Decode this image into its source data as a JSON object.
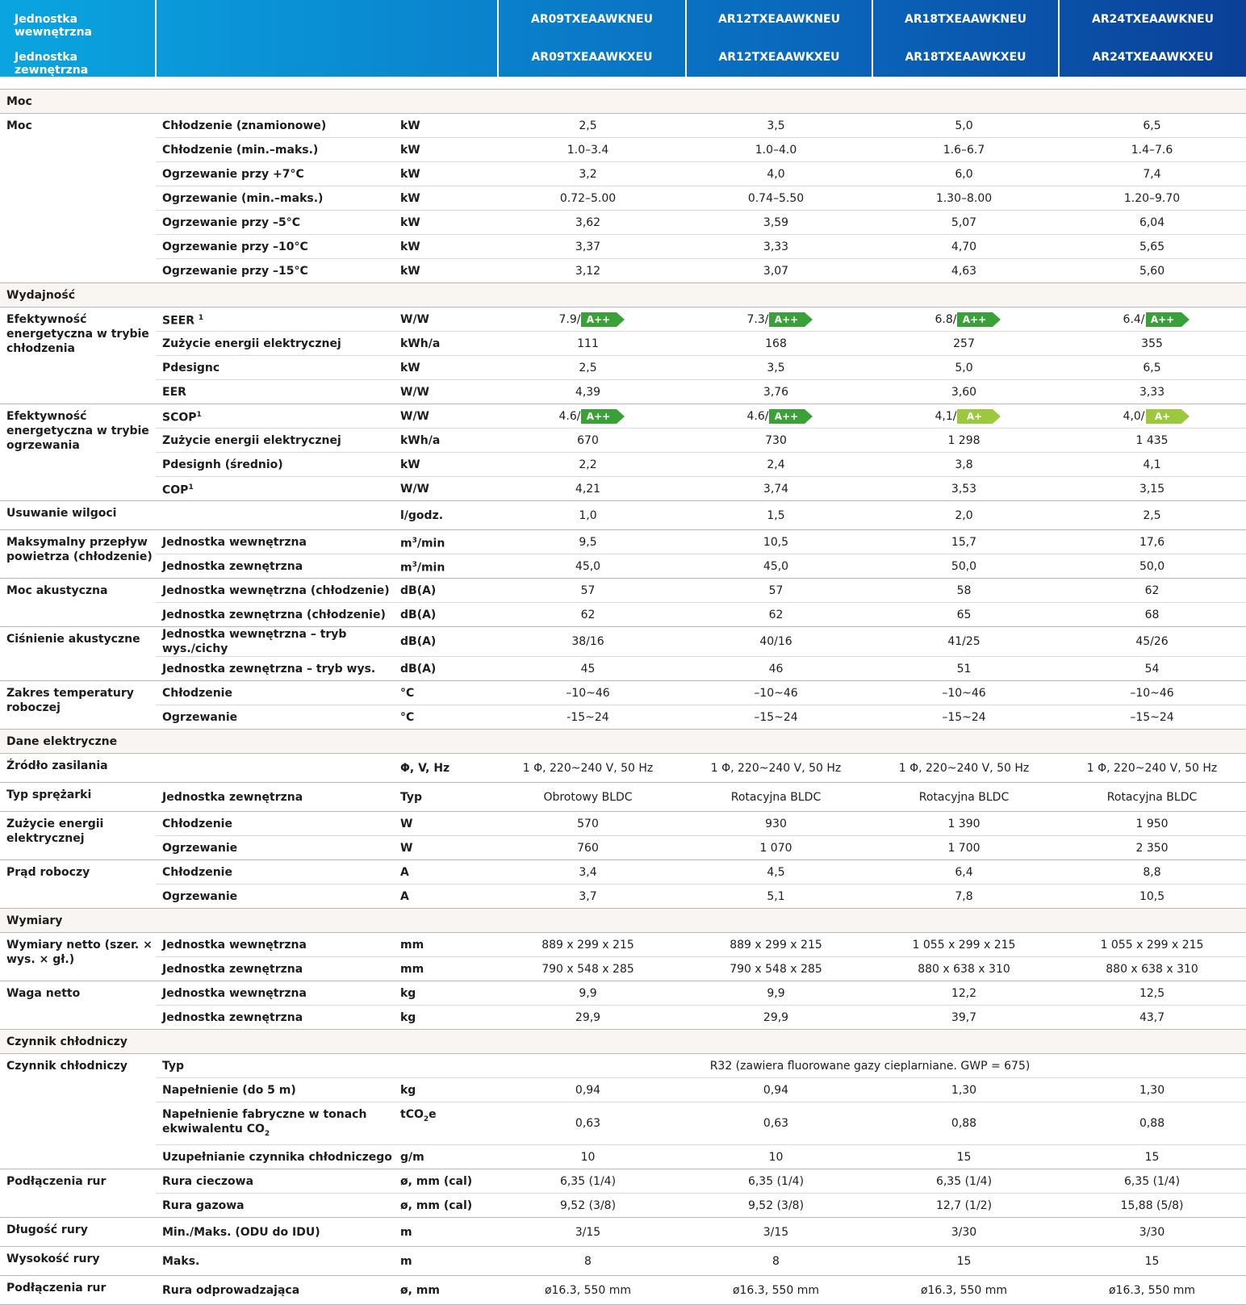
{
  "header": {
    "indoor_label": "Jednostka wewnętrzna",
    "outdoor_label": "Jednostka zewnętrzna",
    "models": [
      {
        "indoor": "AR09TXEAAWKNEU",
        "outdoor": "AR09TXEAAWKXEU"
      },
      {
        "indoor": "AR12TXEAAWKNEU",
        "outdoor": "AR12TXEAAWKXEU"
      },
      {
        "indoor": "AR18TXEAAWKNEU",
        "outdoor": "AR18TXEAAWKXEU"
      },
      {
        "indoor": "AR24TXEAAWKNEU",
        "outdoor": "AR24TXEAAWKXEU"
      }
    ]
  },
  "sections": {
    "moc": "Moc",
    "wydajnosc": "Wydajność",
    "elektryczne": "Dane elektryczne",
    "wymiary": "Wymiary",
    "czynnik": "Czynnik chłodniczy"
  },
  "rows": {
    "moc": {
      "name": "Moc",
      "r0": {
        "sub": "Chłodzenie (znamionowe)",
        "unit": "kW",
        "v": [
          "2,5",
          "3,5",
          "5,0",
          "6,5"
        ]
      },
      "r1": {
        "sub": "Chłodzenie (min.–maks.)",
        "unit": "kW",
        "v": [
          "1.0–3.4",
          "1.0–4.0",
          "1.6–6.7",
          "1.4–7.6"
        ]
      },
      "r2": {
        "sub": "Ogrzewanie przy +7°C",
        "unit": "kW",
        "v": [
          "3,2",
          "4,0",
          "6,0",
          "7,4"
        ]
      },
      "r3": {
        "sub": "Ogrzewanie (min.–maks.)",
        "unit": "kW",
        "v": [
          "0.72–5.00",
          "0.74–5.50",
          "1.30–8.00",
          "1.20–9.70"
        ]
      },
      "r4": {
        "sub": "Ogrzewanie przy –5°C",
        "unit": "kW",
        "v": [
          "3,62",
          "3,59",
          "5,07",
          "6,04"
        ]
      },
      "r5": {
        "sub": "Ogrzewanie przy –10°C",
        "unit": "kW",
        "v": [
          "3,37",
          "3,33",
          "4,70",
          "5,65"
        ]
      },
      "r6": {
        "sub": "Ogrzewanie przy –15°C",
        "unit": "kW",
        "v": [
          "3,12",
          "3,07",
          "4,63",
          "5,60"
        ]
      }
    },
    "eff_cool": {
      "name": "Efektywność energetyczna w trybie chłodzenia",
      "seer": {
        "sub": "SEER",
        "sup": "1",
        "unit": "W/W",
        "v": [
          "7.9/",
          "7.3/",
          "6.8/",
          "6.4/"
        ],
        "class": [
          "A++",
          "A++",
          "A++",
          "A++"
        ]
      },
      "r1": {
        "sub": "Zużycie energii elektrycznej",
        "unit": "kWh/a",
        "v": [
          "111",
          "168",
          "257",
          "355"
        ]
      },
      "r2": {
        "sub": "Pdesignc",
        "unit": "kW",
        "v": [
          "2,5",
          "3,5",
          "5,0",
          "6,5"
        ]
      },
      "r3": {
        "sub": "EER",
        "unit": "W/W",
        "v": [
          "4,39",
          "3,76",
          "3,60",
          "3,33"
        ]
      }
    },
    "eff_heat": {
      "name": "Efektywność energetyczna w trybie ogrzewania",
      "scop": {
        "sub": "SCOP",
        "sup": "1",
        "unit": "W/W",
        "v": [
          "4.6/",
          "4.6/",
          "4,1/",
          "4,0/"
        ],
        "class": [
          "A++",
          "A++",
          "A+",
          "A+"
        ]
      },
      "r1": {
        "sub": "Zużycie energii elektrycznej",
        "unit": "kWh/a",
        "v": [
          "670",
          "730",
          "1 298",
          "1 435"
        ]
      },
      "r2": {
        "sub": "Pdesignh (średnio)",
        "unit": "kW",
        "v": [
          "2,2",
          "2,4",
          "3,8",
          "4,1"
        ]
      },
      "cop": {
        "sub": "COP",
        "sup": "1",
        "unit": "W/W",
        "v": [
          "4,21",
          "3,74",
          "3,53",
          "3,15"
        ]
      }
    },
    "wilgoc": {
      "name": "Usuwanie wilgoci",
      "unit": "l/godz.",
      "v": [
        "1,0",
        "1,5",
        "2,0",
        "2,5"
      ]
    },
    "przeplyw": {
      "name": "Maksymalny przepływ powietrza (chłodzenie)",
      "r0": {
        "sub": "Jednostka wewnętrzna",
        "unit": "m",
        "unit_sup": "3",
        "unit_tail": "/min",
        "v": [
          "9,5",
          "10,5",
          "15,7",
          "17,6"
        ]
      },
      "r1": {
        "sub": "Jednostka zewnętrzna",
        "unit": "m",
        "unit_sup": "3",
        "unit_tail": "/min",
        "v": [
          "45,0",
          "45,0",
          "50,0",
          "50,0"
        ]
      }
    },
    "moc_ak": {
      "name": "Moc akustyczna",
      "r0": {
        "sub": "Jednostka wewnętrzna (chłodzenie)",
        "unit": "dB(A)",
        "v": [
          "57",
          "57",
          "58",
          "62"
        ]
      },
      "r1": {
        "sub": "Jednostka zewnętrzna (chłodzenie)",
        "unit": "dB(A)",
        "v": [
          "62",
          "62",
          "65",
          "68"
        ]
      }
    },
    "cisn_ak": {
      "name": "Ciśnienie akustyczne",
      "r0": {
        "sub": "Jednostka wewnętrzna – tryb wys./cichy",
        "unit": "dB(A)",
        "v": [
          "38/16",
          "40/16",
          "41/25",
          "45/26"
        ]
      },
      "r1": {
        "sub": "Jednostka zewnętrzna – tryb wys.",
        "unit": "dB(A)",
        "v": [
          "45",
          "46",
          "51",
          "54"
        ]
      }
    },
    "zakres": {
      "name": "Zakres temperatury roboczej",
      "r0": {
        "sub": "Chłodzenie",
        "unit": "°C",
        "v": [
          "–10~46",
          "–10~46",
          "–10~46",
          "–10~46"
        ]
      },
      "r1": {
        "sub": "Ogrzewanie",
        "unit": "°C",
        "v": [
          "-15~24",
          "–15~24",
          "–15~24",
          "–15~24"
        ]
      }
    },
    "zrodlo": {
      "name": "Źródło zasilania",
      "unit": "Φ, V, Hz",
      "v": [
        "1 Φ, 220~240 V, 50 Hz",
        "1 Φ, 220~240 V, 50 Hz",
        "1 Φ, 220~240 V, 50 Hz",
        "1 Φ, 220~240 V, 50 Hz"
      ]
    },
    "sprezarka": {
      "name": "Typ sprężarki",
      "sub": "Jednostka zewnętrzna",
      "unit": "Typ",
      "v": [
        "Obrotowy BLDC",
        "Rotacyjna BLDC",
        "Rotacyjna BLDC",
        "Rotacyjna BLDC"
      ]
    },
    "zuzycie": {
      "name": "Zużycie energii elektrycznej",
      "r0": {
        "sub": "Chłodzenie",
        "unit": "W",
        "v": [
          "570",
          "930",
          "1 390",
          "1 950"
        ]
      },
      "r1": {
        "sub": "Ogrzewanie",
        "unit": "W",
        "v": [
          "760",
          "1 070",
          "1 700",
          "2 350"
        ]
      }
    },
    "prad": {
      "name": "Prąd roboczy",
      "r0": {
        "sub": "Chłodzenie",
        "unit": "A",
        "v": [
          "3,4",
          "4,5",
          "6,4",
          "8,8"
        ]
      },
      "r1": {
        "sub": "Ogrzewanie",
        "unit": "A",
        "v": [
          "3,7",
          "5,1",
          "7,8",
          "10,5"
        ]
      }
    },
    "wym_netto": {
      "name": "Wymiary netto (szer. × wys. × gł.)",
      "r0": {
        "sub": "Jednostka wewnętrzna",
        "unit": "mm",
        "v": [
          "889 x 299 x 215",
          "889 x 299 x 215",
          "1 055 x 299 x 215",
          "1 055 x 299 x 215"
        ]
      },
      "r1": {
        "sub": "Jednostka zewnętrzna",
        "unit": "mm",
        "v": [
          "790 x 548 x 285",
          "790 x 548 x 285",
          "880 x 638 x 310",
          "880 x 638 x 310"
        ]
      }
    },
    "waga": {
      "name": "Waga netto",
      "r0": {
        "sub": "Jednostka wewnętrzna",
        "unit": "kg",
        "v": [
          "9,9",
          "9,9",
          "12,2",
          "12,5"
        ]
      },
      "r1": {
        "sub": "Jednostka zewnętrzna",
        "unit": "kg",
        "v": [
          "29,9",
          "29,9",
          "39,7",
          "43,7"
        ]
      }
    },
    "czynnik": {
      "name": "Czynnik chłodniczy",
      "typ": {
        "sub": "Typ",
        "value": "R32 (zawiera fluorowane gazy cieplarniane. GWP = 675)"
      },
      "r1": {
        "sub": "Napełnienie (do 5 m)",
        "unit": "kg",
        "v": [
          "0,94",
          "0,94",
          "1,30",
          "1,30"
        ]
      },
      "r2": {
        "sub_a": "Napełnienie fabryczne w tonach ekwiwalentu CO",
        "sub_sub": "2",
        "unit": "tCO",
        "unit_sub": "2",
        "unit_tail": "e",
        "v": [
          "0,63",
          "0,63",
          "0,88",
          "0,88"
        ]
      },
      "r3": {
        "sub": "Uzupełnianie czynnika chłodniczego",
        "unit": "g/m",
        "v": [
          "10",
          "10",
          "15",
          "15"
        ]
      }
    },
    "podl_rur": {
      "name": "Podłączenia rur",
      "r0": {
        "sub": "Rura cieczowa",
        "unit": "ø, mm (cal)",
        "v": [
          "6,35 (1/4)",
          "6,35 (1/4)",
          "6,35 (1/4)",
          "6,35 (1/4)"
        ]
      },
      "r1": {
        "sub": "Rura gazowa",
        "unit": "ø, mm (cal)",
        "v": [
          "9,52 (3/8)",
          "9,52 (3/8)",
          "12,7 (1/2)",
          "15,88 (5/8)"
        ]
      }
    },
    "dlugosc": {
      "name": "Długość rury",
      "sub": "Min./Maks. (ODU do IDU)",
      "unit": "m",
      "v": [
        "3/15",
        "3/15",
        "3/30",
        "3/30"
      ]
    },
    "wysokosc": {
      "name": "Wysokość rury",
      "sub": "Maks.",
      "unit": "m",
      "v": [
        "8",
        "8",
        "15",
        "15"
      ]
    },
    "odprow": {
      "name": "Podłączenia rur",
      "sub": "Rura odprowadzająca",
      "unit": "ø, mm",
      "v": [
        "ø16.3, 550 mm",
        "ø16.3, 550 mm",
        "ø16.3, 550 mm",
        "ø16.3, 550 mm"
      ]
    }
  },
  "colors": {
    "a_plus_plus": "#3aa138",
    "a_plus": "#9cc93b",
    "header_start": "#0aa5e0",
    "header_end": "#0b3f98",
    "section_bg": "#f8f5f2"
  }
}
